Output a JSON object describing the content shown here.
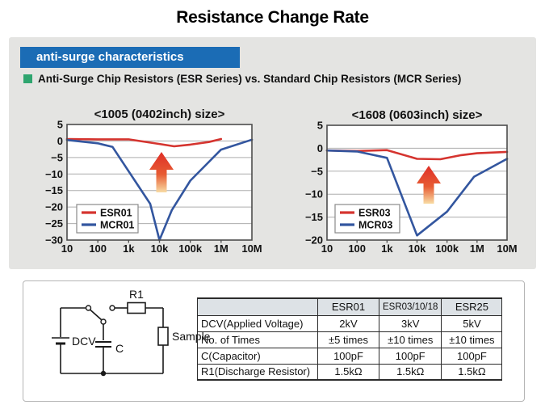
{
  "theme": {
    "banner_blue": "#1b6cb5",
    "bullet_green": "#2fa56f",
    "esr_red": "#d5342f",
    "mcr_blue": "#33569f",
    "panel_gray": "#e4e4e2",
    "table_header_bg": "#dde2e6"
  },
  "page": {
    "title": "Resistance Change Rate"
  },
  "section": {
    "banner": "anti-surge characteristics",
    "subtitle": "Anti-Surge Chip Resistors (ESR Series) vs. Standard Chip Resistors (MCR Series)"
  },
  "chart_data": [
    {
      "type": "line",
      "title": "<1005 (0402inch) size>",
      "x_scale": "log",
      "x_ticks": [
        "10",
        "100",
        "1k",
        "10k",
        "100k",
        "1M",
        "10M"
      ],
      "xlim": [
        10,
        10000000
      ],
      "ylim": [
        -30,
        5
      ],
      "y_ticks": [
        5,
        0,
        -5,
        -10,
        -15,
        -20,
        -25,
        -30
      ],
      "grid": "horizontal",
      "legend_position": "bottom-left",
      "annotation": "red-up-arrow",
      "series": [
        {
          "name": "ESR01",
          "color": "#d5342f",
          "points": [
            [
              10,
              0.6
            ],
            [
              100,
              0.5
            ],
            [
              1000,
              0.5
            ],
            [
              10000,
              -0.9
            ],
            [
              30000,
              -1.6
            ],
            [
              100000,
              -1.1
            ],
            [
              400000,
              -0.3
            ],
            [
              1000000,
              0.6
            ]
          ]
        },
        {
          "name": "MCR01",
          "color": "#33569f",
          "points": [
            [
              10,
              0.3
            ],
            [
              100,
              -0.7
            ],
            [
              300,
              -1.8
            ],
            [
              5000,
              -19
            ],
            [
              10000,
              -30
            ],
            [
              25000,
              -21
            ],
            [
              100000,
              -12
            ],
            [
              1000000,
              -2.6
            ],
            [
              10000000,
              0.4
            ]
          ]
        }
      ]
    },
    {
      "type": "line",
      "title": "<1608 (0603inch) size>",
      "x_scale": "log",
      "x_ticks": [
        "10",
        "100",
        "1k",
        "10k",
        "100k",
        "1M",
        "10M"
      ],
      "xlim": [
        10,
        10000000
      ],
      "ylim": [
        -20,
        5
      ],
      "y_ticks": [
        5,
        0,
        -5,
        -10,
        -15,
        -20
      ],
      "grid": "horizontal",
      "legend_position": "bottom-left",
      "annotation": "red-up-arrow",
      "series": [
        {
          "name": "ESR03",
          "color": "#d5342f",
          "points": [
            [
              10,
              -0.5
            ],
            [
              100,
              -0.6
            ],
            [
              1000,
              -0.4
            ],
            [
              10000,
              -2.3
            ],
            [
              60000,
              -2.4
            ],
            [
              300000,
              -1.5
            ],
            [
              1000000,
              -1.1
            ],
            [
              10000000,
              -0.8
            ]
          ]
        },
        {
          "name": "MCR03",
          "color": "#33569f",
          "points": [
            [
              10,
              -0.5
            ],
            [
              100,
              -0.7
            ],
            [
              1000,
              -2.1
            ],
            [
              10000,
              -19
            ],
            [
              100000,
              -13.8
            ],
            [
              800000,
              -6.2
            ],
            [
              10000000,
              -2.3
            ]
          ]
        }
      ]
    }
  ],
  "circuit": {
    "labels": {
      "r1": "R1",
      "dcv": "DCV",
      "c": "C",
      "sample": "Sample"
    }
  },
  "table": {
    "columns": [
      "",
      "ESR01",
      "ESR03/10/18",
      "ESR25"
    ],
    "rows": [
      {
        "label": "DCV(Applied Voltage)",
        "values": [
          "2kV",
          "3kV",
          "5kV"
        ]
      },
      {
        "label": "No. of Times",
        "values": [
          "±5 times",
          "±10 times",
          "±10 times"
        ]
      },
      {
        "label": "C(Capacitor)",
        "values": [
          "100pF",
          "100pF",
          "100pF"
        ]
      },
      {
        "label": "R1(Discharge Resistor)",
        "values": [
          "1.5kΩ",
          "1.5kΩ",
          "1.5kΩ"
        ]
      }
    ]
  }
}
